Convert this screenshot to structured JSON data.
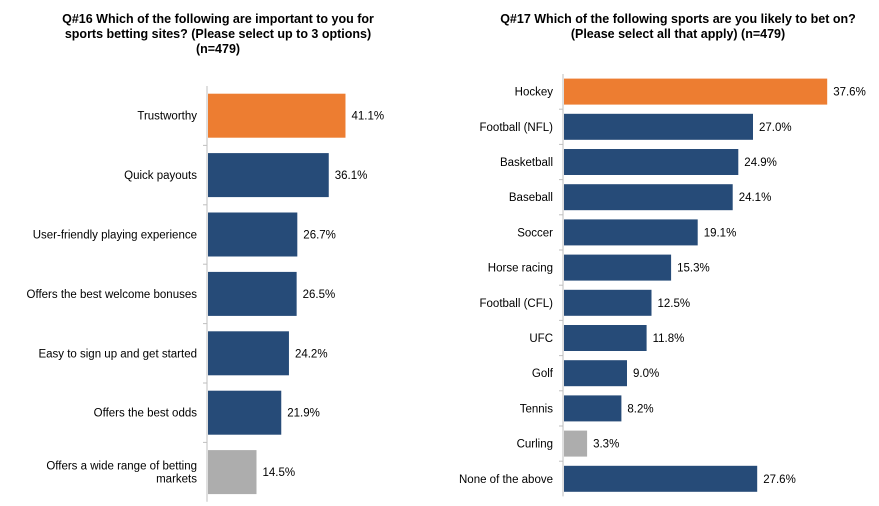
{
  "chart_data": [
    {
      "type": "bar",
      "orientation": "horizontal",
      "title": "Q#16 Which of the following are important to you for sports betting sites? (Please select up to 3 options) (n=479)",
      "categories": [
        "Trustworthy",
        "Quick payouts",
        "User-friendly playing experience",
        "Offers the best welcome bonuses",
        "Easy to sign up and get started",
        "Offers the best odds",
        "Offers a wide range of betting markets"
      ],
      "values": [
        41.1,
        36.1,
        26.7,
        26.5,
        24.2,
        21.9,
        14.5
      ],
      "value_labels": [
        "41.1%",
        "36.1%",
        "26.7%",
        "26.5%",
        "24.2%",
        "21.9%",
        "14.5%"
      ],
      "bar_colors": [
        "#ED7D31",
        "#264B78",
        "#264B78",
        "#264B78",
        "#264B78",
        "#264B78",
        "#ADADAD"
      ],
      "xlim": [
        0,
        100
      ],
      "grid": false
    },
    {
      "type": "bar",
      "orientation": "horizontal",
      "title": "Q#17 Which of the following sports are you likely to bet on? (Please select all that apply) (n=479)",
      "categories": [
        "Hockey",
        "Football (NFL)",
        "Basketball",
        "Baseball",
        "Soccer",
        "Horse racing",
        "Football (CFL)",
        "UFC",
        "Golf",
        "Tennis",
        "Curling",
        "None of the above"
      ],
      "values": [
        37.6,
        27.0,
        24.9,
        24.1,
        19.1,
        15.3,
        12.5,
        11.8,
        9.0,
        8.2,
        3.3,
        27.6
      ],
      "value_labels": [
        "37.6%",
        "27.0%",
        "24.9%",
        "24.1%",
        "19.1%",
        "15.3%",
        "12.5%",
        "11.8%",
        "9.0%",
        "8.2%",
        "3.3%",
        "27.6%"
      ],
      "bar_colors": [
        "#ED7D31",
        "#264B78",
        "#264B78",
        "#264B78",
        "#264B78",
        "#264B78",
        "#264B78",
        "#264B78",
        "#264B78",
        "#264B78",
        "#ADADAD",
        "#264B78"
      ],
      "xlim": [
        0,
        100
      ],
      "grid": false
    }
  ]
}
